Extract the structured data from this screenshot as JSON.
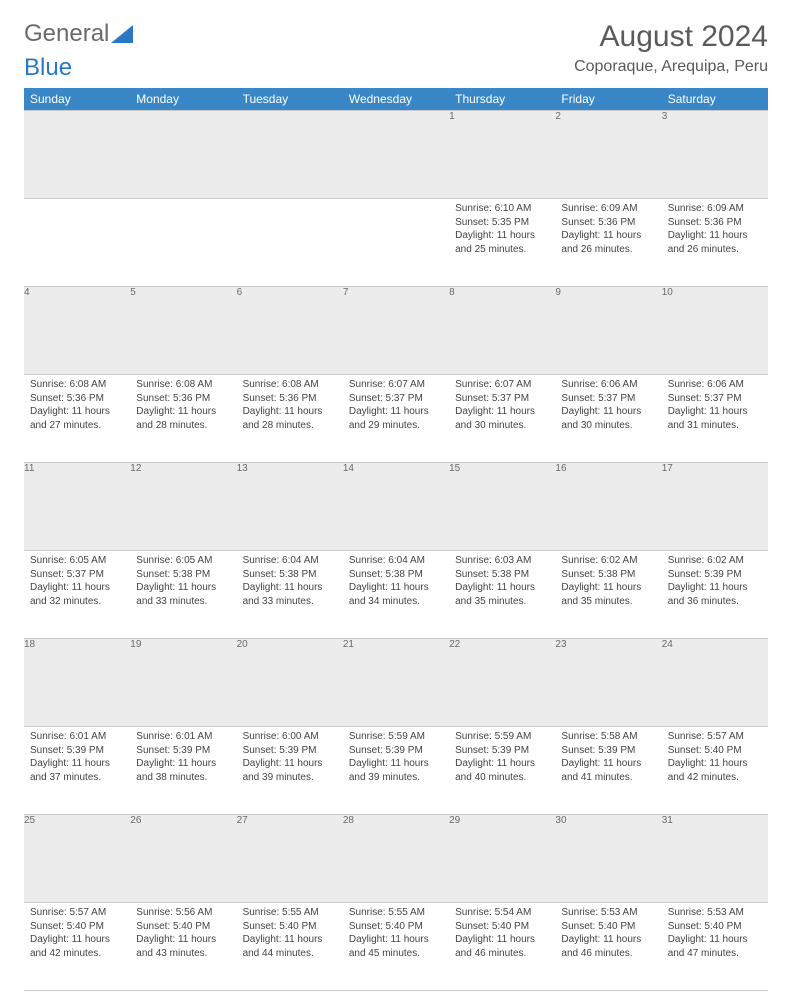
{
  "logo": {
    "text1": "General",
    "text2": "Blue"
  },
  "title": "August 2024",
  "location": "Coporaque, Arequipa, Peru",
  "colors": {
    "header_bg": "#3a87c7",
    "header_text": "#ffffff",
    "daynum_bg": "#ececec",
    "border": "#c9c9c9",
    "logo_accent": "#2a78c4"
  },
  "day_headers": [
    "Sunday",
    "Monday",
    "Tuesday",
    "Wednesday",
    "Thursday",
    "Friday",
    "Saturday"
  ],
  "weeks": [
    [
      {
        "n": "",
        "sr": "",
        "ss": "",
        "dl": ""
      },
      {
        "n": "",
        "sr": "",
        "ss": "",
        "dl": ""
      },
      {
        "n": "",
        "sr": "",
        "ss": "",
        "dl": ""
      },
      {
        "n": "",
        "sr": "",
        "ss": "",
        "dl": ""
      },
      {
        "n": "1",
        "sr": "6:10 AM",
        "ss": "5:35 PM",
        "dl": "11 hours and 25 minutes."
      },
      {
        "n": "2",
        "sr": "6:09 AM",
        "ss": "5:36 PM",
        "dl": "11 hours and 26 minutes."
      },
      {
        "n": "3",
        "sr": "6:09 AM",
        "ss": "5:36 PM",
        "dl": "11 hours and 26 minutes."
      }
    ],
    [
      {
        "n": "4",
        "sr": "6:08 AM",
        "ss": "5:36 PM",
        "dl": "11 hours and 27 minutes."
      },
      {
        "n": "5",
        "sr": "6:08 AM",
        "ss": "5:36 PM",
        "dl": "11 hours and 28 minutes."
      },
      {
        "n": "6",
        "sr": "6:08 AM",
        "ss": "5:36 PM",
        "dl": "11 hours and 28 minutes."
      },
      {
        "n": "7",
        "sr": "6:07 AM",
        "ss": "5:37 PM",
        "dl": "11 hours and 29 minutes."
      },
      {
        "n": "8",
        "sr": "6:07 AM",
        "ss": "5:37 PM",
        "dl": "11 hours and 30 minutes."
      },
      {
        "n": "9",
        "sr": "6:06 AM",
        "ss": "5:37 PM",
        "dl": "11 hours and 30 minutes."
      },
      {
        "n": "10",
        "sr": "6:06 AM",
        "ss": "5:37 PM",
        "dl": "11 hours and 31 minutes."
      }
    ],
    [
      {
        "n": "11",
        "sr": "6:05 AM",
        "ss": "5:37 PM",
        "dl": "11 hours and 32 minutes."
      },
      {
        "n": "12",
        "sr": "6:05 AM",
        "ss": "5:38 PM",
        "dl": "11 hours and 33 minutes."
      },
      {
        "n": "13",
        "sr": "6:04 AM",
        "ss": "5:38 PM",
        "dl": "11 hours and 33 minutes."
      },
      {
        "n": "14",
        "sr": "6:04 AM",
        "ss": "5:38 PM",
        "dl": "11 hours and 34 minutes."
      },
      {
        "n": "15",
        "sr": "6:03 AM",
        "ss": "5:38 PM",
        "dl": "11 hours and 35 minutes."
      },
      {
        "n": "16",
        "sr": "6:02 AM",
        "ss": "5:38 PM",
        "dl": "11 hours and 35 minutes."
      },
      {
        "n": "17",
        "sr": "6:02 AM",
        "ss": "5:39 PM",
        "dl": "11 hours and 36 minutes."
      }
    ],
    [
      {
        "n": "18",
        "sr": "6:01 AM",
        "ss": "5:39 PM",
        "dl": "11 hours and 37 minutes."
      },
      {
        "n": "19",
        "sr": "6:01 AM",
        "ss": "5:39 PM",
        "dl": "11 hours and 38 minutes."
      },
      {
        "n": "20",
        "sr": "6:00 AM",
        "ss": "5:39 PM",
        "dl": "11 hours and 39 minutes."
      },
      {
        "n": "21",
        "sr": "5:59 AM",
        "ss": "5:39 PM",
        "dl": "11 hours and 39 minutes."
      },
      {
        "n": "22",
        "sr": "5:59 AM",
        "ss": "5:39 PM",
        "dl": "11 hours and 40 minutes."
      },
      {
        "n": "23",
        "sr": "5:58 AM",
        "ss": "5:39 PM",
        "dl": "11 hours and 41 minutes."
      },
      {
        "n": "24",
        "sr": "5:57 AM",
        "ss": "5:40 PM",
        "dl": "11 hours and 42 minutes."
      }
    ],
    [
      {
        "n": "25",
        "sr": "5:57 AM",
        "ss": "5:40 PM",
        "dl": "11 hours and 42 minutes."
      },
      {
        "n": "26",
        "sr": "5:56 AM",
        "ss": "5:40 PM",
        "dl": "11 hours and 43 minutes."
      },
      {
        "n": "27",
        "sr": "5:55 AM",
        "ss": "5:40 PM",
        "dl": "11 hours and 44 minutes."
      },
      {
        "n": "28",
        "sr": "5:55 AM",
        "ss": "5:40 PM",
        "dl": "11 hours and 45 minutes."
      },
      {
        "n": "29",
        "sr": "5:54 AM",
        "ss": "5:40 PM",
        "dl": "11 hours and 46 minutes."
      },
      {
        "n": "30",
        "sr": "5:53 AM",
        "ss": "5:40 PM",
        "dl": "11 hours and 46 minutes."
      },
      {
        "n": "31",
        "sr": "5:53 AM",
        "ss": "5:40 PM",
        "dl": "11 hours and 47 minutes."
      }
    ]
  ],
  "labels": {
    "sunrise": "Sunrise:",
    "sunset": "Sunset:",
    "daylight": "Daylight:"
  }
}
